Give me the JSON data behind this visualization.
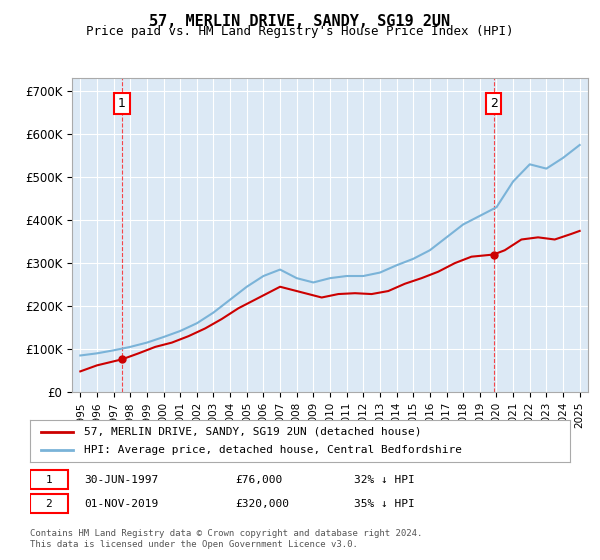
{
  "title": "57, MERLIN DRIVE, SANDY, SG19 2UN",
  "subtitle": "Price paid vs. HM Land Registry's House Price Index (HPI)",
  "background_color": "#dce9f5",
  "plot_bg_color": "#dce9f5",
  "outer_bg_color": "#ffffff",
  "years": [
    1995,
    1996,
    1997,
    1998,
    1999,
    2000,
    2001,
    2002,
    2003,
    2004,
    2005,
    2006,
    2007,
    2008,
    2009,
    2010,
    2011,
    2012,
    2013,
    2014,
    2015,
    2016,
    2017,
    2018,
    2019,
    2020,
    2021,
    2022,
    2023,
    2024,
    2025
  ],
  "hpi_values": [
    85000,
    90000,
    97000,
    105000,
    115000,
    128000,
    142000,
    160000,
    185000,
    215000,
    245000,
    270000,
    285000,
    265000,
    255000,
    265000,
    270000,
    270000,
    278000,
    295000,
    310000,
    330000,
    360000,
    390000,
    410000,
    430000,
    490000,
    530000,
    520000,
    545000,
    575000
  ],
  "hpi_color": "#7ab3d8",
  "price_paid_dates": [
    1997.5,
    2019.83
  ],
  "price_paid_values": [
    76000,
    320000
  ],
  "price_color": "#cc0000",
  "sale1_date": 1997.5,
  "sale1_value": 76000,
  "sale1_label": "1",
  "sale2_date": 2019.83,
  "sale2_value": 320000,
  "sale2_label": "2",
  "ylim": [
    0,
    730000
  ],
  "xlim": [
    1994.5,
    2025.5
  ],
  "yticks": [
    0,
    100000,
    200000,
    300000,
    400000,
    500000,
    600000,
    700000
  ],
  "ytick_labels": [
    "£0",
    "£100K",
    "£200K",
    "£300K",
    "£400K",
    "£500K",
    "£600K",
    "£700K"
  ],
  "xtick_years": [
    1995,
    1996,
    1997,
    1998,
    1999,
    2000,
    2001,
    2002,
    2003,
    2004,
    2005,
    2006,
    2007,
    2008,
    2009,
    2010,
    2011,
    2012,
    2013,
    2014,
    2015,
    2016,
    2017,
    2018,
    2019,
    2020,
    2021,
    2022,
    2023,
    2024,
    2025
  ],
  "legend_line1": "57, MERLIN DRIVE, SANDY, SG19 2UN (detached house)",
  "legend_line2": "HPI: Average price, detached house, Central Bedfordshire",
  "note1_num": "1",
  "note1_date": "30-JUN-1997",
  "note1_price": "£76,000",
  "note1_hpi": "32% ↓ HPI",
  "note2_num": "2",
  "note2_date": "01-NOV-2019",
  "note2_price": "£320,000",
  "note2_hpi": "35% ↓ HPI",
  "footer": "Contains HM Land Registry data © Crown copyright and database right 2024.\nThis data is licensed under the Open Government Licence v3.0."
}
